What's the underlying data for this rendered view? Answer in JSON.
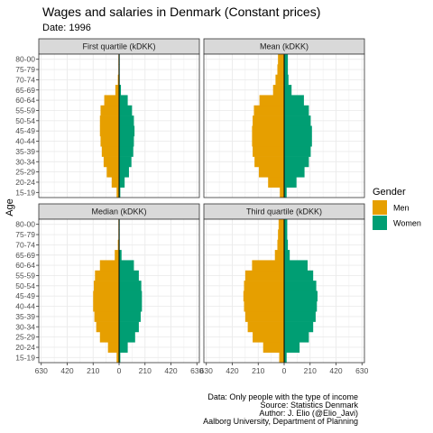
{
  "header": {
    "title": "Wages and salaries in Denmark (Constant prices)",
    "subtitle": "Date: 1996"
  },
  "caption": {
    "lines": [
      "Data: Only people with the type of income",
      "Source: Statistics Denmark",
      "Author: J. Elio (@Elio_Javi)",
      "Aalborg University, Department of Planning"
    ]
  },
  "colors": {
    "men": "#E69F00",
    "women": "#009E73",
    "strip": "#D9D9D9",
    "grid": "#EBEBEB"
  },
  "chart_data": {
    "type": "bar",
    "orientation": "horizontal-population-pyramid",
    "ylabel": "Age",
    "xlim": [
      -650,
      650
    ],
    "x_ticks": [
      -630,
      -420,
      -210,
      0,
      210,
      420,
      630
    ],
    "x_tick_labels": [
      "630",
      "420",
      "210",
      "0",
      "210",
      "420",
      "630"
    ],
    "categories": [
      "15-19",
      "20-24",
      "25-29",
      "30-34",
      "35-39",
      "40-44",
      "45-49",
      "50-54",
      "55-59",
      "60-64",
      "65-69",
      "70-74",
      "75-79",
      "80-00"
    ],
    "legend": {
      "title": "Gender",
      "position": "right",
      "entries": [
        "Men",
        "Women"
      ]
    },
    "panels": [
      {
        "name": "First quartile (kDKK)",
        "series": [
          {
            "name": "Men",
            "values": [
              20,
              60,
              100,
              125,
              140,
              150,
              155,
              155,
              150,
              120,
              30,
              10,
              5,
              5
            ]
          },
          {
            "name": "Women",
            "values": [
              10,
              45,
              80,
              100,
              115,
              120,
              125,
              120,
              105,
              70,
              15,
              5,
              5,
              5
            ]
          }
        ]
      },
      {
        "name": "Mean (kDKK)",
        "series": [
          {
            "name": "Men",
            "values": [
              35,
              130,
              205,
              240,
              255,
              260,
              260,
              255,
              245,
              200,
              90,
              70,
              55,
              50
            ]
          },
          {
            "name": "Women",
            "values": [
              20,
              100,
              165,
              200,
              215,
              225,
              225,
              215,
              200,
              160,
              60,
              35,
              30,
              30
            ]
          }
        ]
      },
      {
        "name": "Median (kDKK)",
        "series": [
          {
            "name": "Men",
            "values": [
              20,
              90,
              155,
              185,
              200,
              210,
              210,
              205,
              195,
              155,
              35,
              10,
              5,
              5
            ]
          },
          {
            "name": "Women",
            "values": [
              10,
              70,
              130,
              160,
              175,
              185,
              185,
              180,
              160,
              120,
              20,
              5,
              5,
              5
            ]
          }
        ]
      },
      {
        "name": "Third quartile (kDKK)",
        "series": [
          {
            "name": "Men",
            "values": [
              40,
              170,
              255,
              295,
              315,
              325,
              330,
              325,
              315,
              260,
              75,
              55,
              50,
              45
            ]
          },
          {
            "name": "Women",
            "values": [
              20,
              125,
              200,
              235,
              255,
              265,
              270,
              260,
              235,
              190,
              45,
              30,
              25,
              25
            ]
          }
        ]
      }
    ]
  }
}
